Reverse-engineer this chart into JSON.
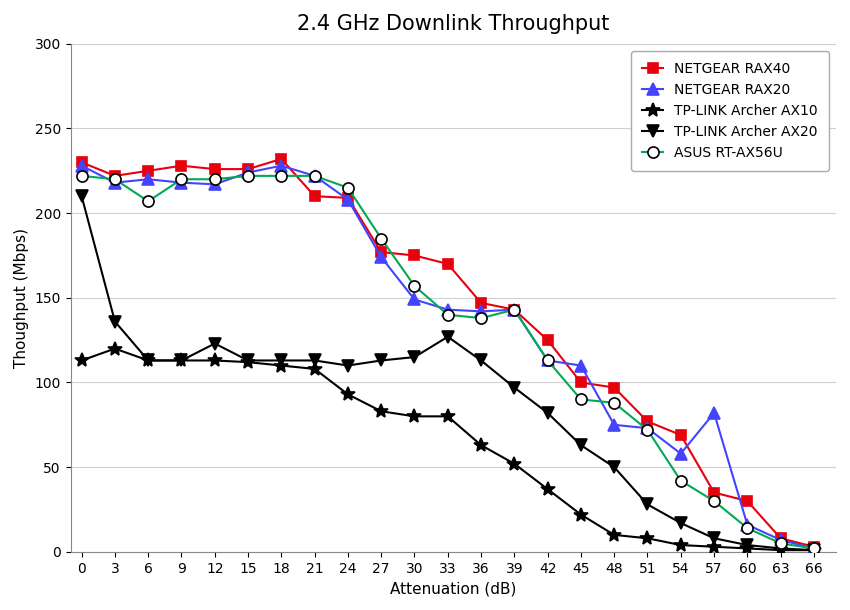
{
  "title": "2.4 GHz Downlink Throughput",
  "xlabel": "Attenuation (dB)",
  "ylabel": "Thoughput (Mbps)",
  "x_ticks": [
    0,
    3,
    6,
    9,
    12,
    15,
    18,
    21,
    24,
    27,
    30,
    33,
    36,
    39,
    42,
    45,
    48,
    51,
    54,
    57,
    60,
    63,
    66
  ],
  "ylim": [
    0,
    300
  ],
  "yticks": [
    0,
    50,
    100,
    150,
    200,
    250,
    300
  ],
  "series": [
    {
      "label": "NETGEAR RAX40",
      "color": "#e8000d",
      "marker": "s",
      "markersize": 7,
      "linewidth": 1.5,
      "linestyle": "-",
      "markerfacecolor": "#e8000d",
      "markeredgecolor": "#e8000d",
      "x": [
        0,
        3,
        6,
        9,
        12,
        15,
        18,
        21,
        24,
        27,
        30,
        33,
        36,
        39,
        42,
        45,
        48,
        51,
        54,
        57,
        60,
        63,
        66
      ],
      "y": [
        230,
        222,
        225,
        228,
        226,
        226,
        232,
        210,
        209,
        177,
        175,
        170,
        147,
        143,
        125,
        100,
        97,
        77,
        69,
        35,
        30,
        8,
        3
      ]
    },
    {
      "label": "NETGEAR RAX20",
      "color": "#4444ff",
      "marker": "^",
      "markersize": 8,
      "linewidth": 1.5,
      "linestyle": "-",
      "markerfacecolor": "#4444ff",
      "markeredgecolor": "#4444ff",
      "x": [
        0,
        3,
        6,
        9,
        12,
        15,
        18,
        21,
        24,
        27,
        30,
        33,
        36,
        39,
        42,
        45,
        48,
        51,
        54,
        57,
        60,
        63,
        66
      ],
      "y": [
        228,
        218,
        220,
        218,
        217,
        224,
        228,
        222,
        208,
        174,
        149,
        143,
        142,
        143,
        113,
        110,
        75,
        73,
        58,
        82,
        16,
        7,
        2
      ]
    },
    {
      "label": "TP-LINK Archer AX10",
      "color": "#000000",
      "marker": "*",
      "markersize": 10,
      "linewidth": 1.5,
      "linestyle": "-",
      "markerfacecolor": "#000000",
      "markeredgecolor": "#000000",
      "x": [
        0,
        3,
        6,
        9,
        12,
        15,
        18,
        21,
        24,
        27,
        30,
        33,
        36,
        39,
        42,
        45,
        48,
        51,
        54,
        57,
        60,
        63,
        66
      ],
      "y": [
        113,
        120,
        113,
        113,
        113,
        112,
        110,
        108,
        93,
        83,
        80,
        80,
        63,
        52,
        37,
        22,
        10,
        8,
        4,
        3,
        2,
        1,
        1
      ]
    },
    {
      "label": "TP-LINK Archer AX20",
      "color": "#000000",
      "marker": "v",
      "markersize": 9,
      "linewidth": 1.5,
      "linestyle": "-",
      "markerfacecolor": "#000000",
      "markeredgecolor": "#000000",
      "x": [
        0,
        3,
        6,
        9,
        12,
        15,
        18,
        21,
        24,
        27,
        30,
        33,
        36,
        39,
        42,
        45,
        48,
        51,
        54,
        57,
        60,
        63,
        66
      ],
      "y": [
        210,
        136,
        113,
        113,
        123,
        113,
        113,
        113,
        110,
        113,
        115,
        127,
        113,
        97,
        82,
        63,
        50,
        28,
        17,
        8,
        4,
        2,
        1
      ]
    },
    {
      "label": "ASUS RT-AX56U",
      "color": "#00aa55",
      "marker": "o",
      "markersize": 8,
      "linewidth": 1.5,
      "linestyle": "-",
      "markerfacecolor": "white",
      "markeredgecolor": "#000000",
      "x": [
        0,
        3,
        6,
        9,
        12,
        15,
        18,
        21,
        24,
        27,
        30,
        33,
        36,
        39,
        42,
        45,
        48,
        51,
        54,
        57,
        60,
        63,
        66
      ],
      "y": [
        222,
        220,
        207,
        220,
        220,
        222,
        222,
        222,
        215,
        185,
        157,
        140,
        138,
        143,
        113,
        90,
        88,
        72,
        42,
        30,
        14,
        5,
        2
      ]
    }
  ],
  "background_color": "#ffffff",
  "grid_color": "#d0d0d0",
  "title_fontsize": 15,
  "axis_fontsize": 11,
  "tick_fontsize": 10,
  "legend_fontsize": 10
}
